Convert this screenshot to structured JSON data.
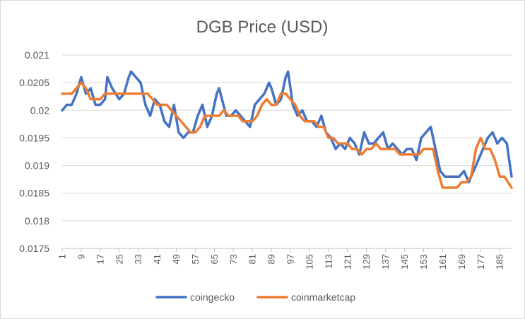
{
  "chart_data": {
    "type": "line",
    "title": "DGB Price (USD)",
    "xlabel": "",
    "ylabel": "",
    "xlim": [
      1,
      190
    ],
    "ylim": [
      0.0175,
      0.021
    ],
    "y_ticks": [
      "0.0175",
      "0.018",
      "0.0185",
      "0.019",
      "0.0195",
      "0.02",
      "0.0205",
      "0.021"
    ],
    "x_ticks": [
      1,
      9,
      17,
      25,
      33,
      41,
      49,
      57,
      65,
      73,
      81,
      89,
      97,
      105,
      113,
      121,
      129,
      137,
      145,
      153,
      161,
      169,
      177,
      185
    ],
    "grid": "horizontal",
    "legend": "bottom",
    "series": [
      {
        "name": "coingecko",
        "color": "#4472c4",
        "x": [
          1,
          3,
          5,
          7,
          9,
          11,
          13,
          15,
          17,
          19,
          20,
          22,
          25,
          27,
          29,
          30,
          32,
          34,
          36,
          38,
          40,
          42,
          44,
          46,
          48,
          50,
          52,
          54,
          56,
          58,
          60,
          62,
          64,
          66,
          67,
          70,
          72,
          74,
          76,
          78,
          80,
          82,
          84,
          86,
          88,
          89,
          91,
          93,
          95,
          96,
          98,
          100,
          102,
          104,
          106,
          108,
          110,
          112,
          114,
          116,
          118,
          120,
          122,
          124,
          126,
          128,
          130,
          132,
          134,
          136,
          138,
          140,
          142,
          144,
          146,
          148,
          150,
          152,
          154,
          156,
          158,
          160,
          162,
          164,
          166,
          168,
          170,
          172,
          174,
          176,
          178,
          180,
          182,
          184,
          186,
          188,
          190
        ],
        "y": [
          0.02,
          0.0201,
          0.0201,
          0.0203,
          0.0206,
          0.0203,
          0.0204,
          0.0201,
          0.0201,
          0.0202,
          0.0206,
          0.0204,
          0.0202,
          0.0203,
          0.0206,
          0.0207,
          0.0206,
          0.0205,
          0.0201,
          0.0199,
          0.0202,
          0.0201,
          0.0198,
          0.0197,
          0.0201,
          0.0196,
          0.0195,
          0.0196,
          0.0196,
          0.0199,
          0.0201,
          0.0197,
          0.0199,
          0.0203,
          0.0204,
          0.0199,
          0.0199,
          0.02,
          0.0199,
          0.0198,
          0.0197,
          0.0201,
          0.0202,
          0.0203,
          0.0205,
          0.0204,
          0.0201,
          0.0202,
          0.0206,
          0.0207,
          0.0201,
          0.0199,
          0.02,
          0.0198,
          0.0198,
          0.0197,
          0.0199,
          0.0196,
          0.0195,
          0.0193,
          0.0194,
          0.0193,
          0.0195,
          0.0194,
          0.0192,
          0.0196,
          0.0194,
          0.0194,
          0.0195,
          0.0196,
          0.0193,
          0.0194,
          0.0193,
          0.0192,
          0.0193,
          0.0193,
          0.0191,
          0.0195,
          0.0196,
          0.0197,
          0.0193,
          0.0189,
          0.0188,
          0.0188,
          0.0188,
          0.0188,
          0.0189,
          0.0187,
          0.0189,
          0.0191,
          0.0193,
          0.0195,
          0.0196,
          0.0194,
          0.0195,
          0.0194,
          0.0188
        ]
      },
      {
        "name": "coinmarketcap",
        "color": "#ed7d31",
        "x": [
          1,
          3,
          5,
          7,
          9,
          11,
          13,
          15,
          17,
          19,
          21,
          24,
          27,
          30,
          33,
          35,
          37,
          39,
          41,
          43,
          45,
          47,
          49,
          51,
          53,
          55,
          57,
          59,
          61,
          63,
          65,
          67,
          69,
          71,
          73,
          75,
          77,
          79,
          81,
          83,
          85,
          87,
          89,
          91,
          93,
          95,
          97,
          99,
          101,
          103,
          105,
          107,
          109,
          111,
          113,
          115,
          117,
          119,
          121,
          123,
          125,
          127,
          129,
          131,
          133,
          135,
          137,
          139,
          141,
          143,
          145,
          147,
          149,
          151,
          153,
          155,
          157,
          159,
          161,
          163,
          165,
          167,
          169,
          171,
          173,
          175,
          177,
          179,
          181,
          183,
          185,
          187,
          190
        ],
        "y": [
          0.0203,
          0.0203,
          0.0203,
          0.0204,
          0.0205,
          0.0204,
          0.0202,
          0.0202,
          0.0202,
          0.0203,
          0.0203,
          0.0203,
          0.0203,
          0.0203,
          0.0203,
          0.0203,
          0.0203,
          0.0202,
          0.0201,
          0.0201,
          0.0201,
          0.02,
          0.0199,
          0.0198,
          0.0197,
          0.0196,
          0.0196,
          0.0197,
          0.0199,
          0.0199,
          0.0199,
          0.0199,
          0.02,
          0.0199,
          0.0199,
          0.0199,
          0.0198,
          0.0198,
          0.0198,
          0.0199,
          0.0201,
          0.0202,
          0.0201,
          0.0201,
          0.0203,
          0.0203,
          0.0202,
          0.0201,
          0.0199,
          0.0198,
          0.0198,
          0.0198,
          0.0197,
          0.0197,
          0.0195,
          0.0195,
          0.0194,
          0.0194,
          0.0194,
          0.0193,
          0.0193,
          0.0192,
          0.0193,
          0.0193,
          0.0194,
          0.0193,
          0.0193,
          0.0193,
          0.0193,
          0.0192,
          0.0192,
          0.0192,
          0.0192,
          0.0192,
          0.0193,
          0.0193,
          0.0193,
          0.0189,
          0.0186,
          0.0186,
          0.0186,
          0.0186,
          0.0187,
          0.0187,
          0.0188,
          0.0193,
          0.0195,
          0.0193,
          0.0193,
          0.0191,
          0.0188,
          0.0188,
          0.0186
        ]
      }
    ]
  }
}
